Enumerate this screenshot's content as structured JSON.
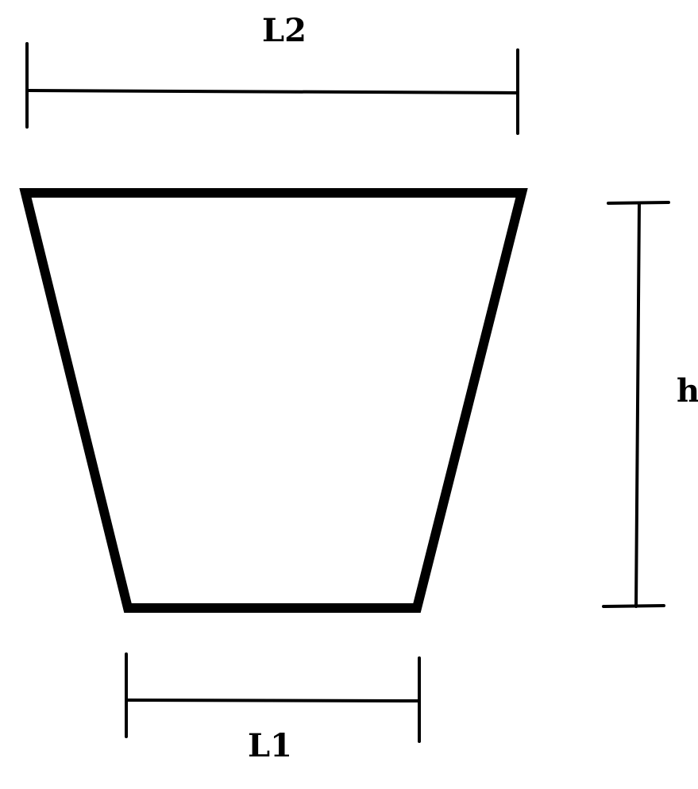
{
  "diagram": {
    "shape": "trapezoid",
    "labels": {
      "top_width": "L2",
      "bottom_width": "L1",
      "height": "h"
    },
    "colors": {
      "stroke": "#000000",
      "background": "#ffffff"
    }
  }
}
